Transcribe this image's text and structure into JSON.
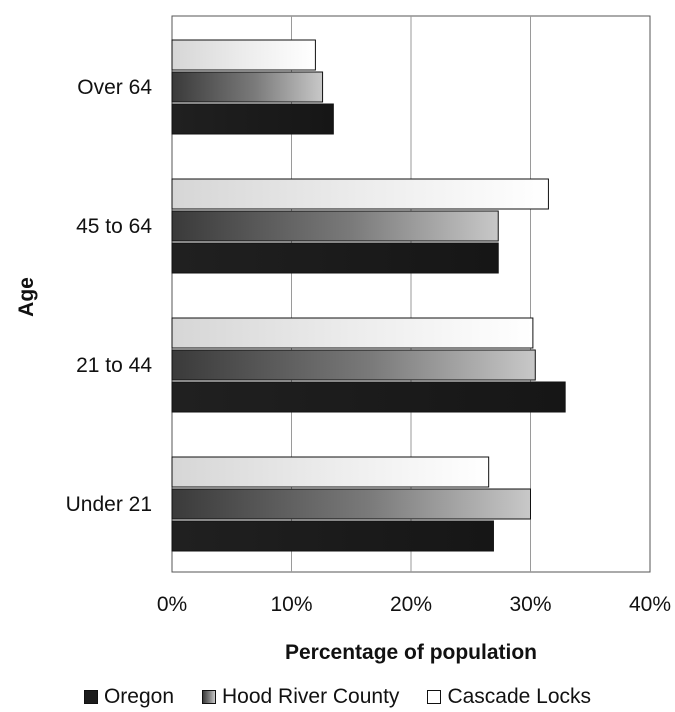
{
  "chart_data": {
    "type": "bar",
    "orientation": "horizontal",
    "categories": [
      "Over 64",
      "45 to 64",
      "21 to 44",
      "Under 21"
    ],
    "series": [
      {
        "name": "Cascade Locks",
        "values": [
          12.0,
          31.5,
          30.2,
          26.5
        ]
      },
      {
        "name": "Hood River County",
        "values": [
          12.6,
          27.3,
          30.4,
          30.0
        ]
      },
      {
        "name": "Oregon",
        "values": [
          13.5,
          27.3,
          32.9,
          26.9
        ]
      }
    ],
    "title": "",
    "xlabel": "Percentage of population",
    "ylabel": "Age",
    "xlim": [
      0,
      40
    ],
    "x_ticks": [
      "0%",
      "10%",
      "20%",
      "30%",
      "40%"
    ],
    "grid": "vertical",
    "legend": {
      "position": "bottom",
      "entries": [
        "Oregon",
        "Hood River County",
        "Cascade Locks"
      ]
    },
    "colors": {
      "Oregon": "#1c1c1c",
      "Hood River County": "#6e6e6e",
      "Cascade Locks": "#f2f2f2"
    }
  }
}
